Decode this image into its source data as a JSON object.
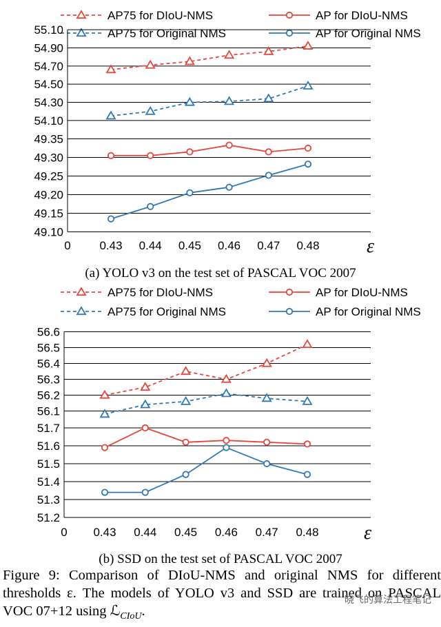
{
  "colors": {
    "red": "#e5463b",
    "blue": "#2f78b7",
    "grid": "#000000"
  },
  "chart_data": [
    {
      "type": "line",
      "subtitle": "(a) YOLO v3 on the test set of PASCAL VOC 2007",
      "xlabel": "ε",
      "categories": [
        "0.43",
        "0.44",
        "0.45",
        "0.46",
        "0.47",
        "0.48"
      ],
      "origin_label": "0",
      "broken_axis": true,
      "upper_yticks": [
        "55.10",
        "54.90",
        "54.70",
        "54.50",
        "54.30",
        "54.10"
      ],
      "lower_yticks": [
        "49.35",
        "49.30",
        "49.25",
        "49.20",
        "49.15",
        "49.10"
      ],
      "upper_ylim": [
        54.1,
        55.1
      ],
      "lower_ylim": [
        49.1,
        49.35
      ],
      "legend": [
        {
          "label": "AP75 for DIoU-NMS",
          "color": "red",
          "dash": true,
          "marker": "triangle"
        },
        {
          "label": "AP for DIoU-NMS",
          "color": "red",
          "dash": false,
          "marker": "circle"
        },
        {
          "label": "AP75 for Original NMS",
          "color": "blue",
          "dash": true,
          "marker": "triangle"
        },
        {
          "label": "AP for Original NMS",
          "color": "blue",
          "dash": false,
          "marker": "circle"
        }
      ],
      "series": [
        {
          "name": "AP75 for DIoU-NMS",
          "panel": "upper",
          "values": [
            54.66,
            54.71,
            54.75,
            54.82,
            54.86,
            54.92
          ]
        },
        {
          "name": "AP75 for Original NMS",
          "panel": "upper",
          "values": [
            54.15,
            54.2,
            54.3,
            54.31,
            54.34,
            54.48
          ]
        },
        {
          "name": "AP for DIoU-NMS",
          "panel": "lower",
          "values": [
            49.305,
            49.305,
            49.315,
            49.333,
            49.315,
            49.325
          ]
        },
        {
          "name": "AP for Original NMS",
          "panel": "lower",
          "values": [
            49.135,
            49.168,
            49.205,
            49.22,
            49.252,
            49.282
          ]
        }
      ]
    },
    {
      "type": "line",
      "subtitle": "(b) SSD on the test set of PASCAL VOC 2007",
      "xlabel": "ε",
      "categories": [
        "0.43",
        "0.44",
        "0.45",
        "0.46",
        "0.47",
        "0.48"
      ],
      "origin_label": "0",
      "broken_axis": true,
      "upper_yticks": [
        "56.6",
        "56.5",
        "56.4",
        "56.3",
        "56.2",
        "56.1"
      ],
      "lower_yticks": [
        "51.7",
        "51.6",
        "51.5",
        "51.4",
        "51.3",
        "51.2"
      ],
      "upper_ylim": [
        56.1,
        56.6
      ],
      "lower_ylim": [
        51.2,
        51.7
      ],
      "legend": [
        {
          "label": "AP75 for DIoU-NMS",
          "color": "red",
          "dash": true,
          "marker": "triangle"
        },
        {
          "label": "AP for DIoU-NMS",
          "color": "red",
          "dash": false,
          "marker": "circle"
        },
        {
          "label": "AP75 for Original NMS",
          "color": "blue",
          "dash": true,
          "marker": "triangle"
        },
        {
          "label": "AP for Original NMS",
          "color": "blue",
          "dash": false,
          "marker": "circle"
        }
      ],
      "series": [
        {
          "name": "AP75 for DIoU-NMS",
          "panel": "upper",
          "values": [
            56.2,
            56.25,
            56.35,
            56.3,
            56.4,
            56.52
          ]
        },
        {
          "name": "AP75 for Original NMS",
          "panel": "upper",
          "values": [
            56.08,
            56.14,
            56.16,
            56.21,
            56.18,
            56.16
          ]
        },
        {
          "name": "AP for DIoU-NMS",
          "panel": "lower",
          "values": [
            51.59,
            51.7,
            51.62,
            51.63,
            51.62,
            51.61
          ]
        },
        {
          "name": "AP for Original NMS",
          "panel": "lower",
          "values": [
            51.34,
            51.34,
            51.44,
            51.59,
            51.5,
            51.44
          ]
        }
      ]
    }
  ],
  "caption": {
    "label": "Figure 9:",
    "text": "Comparison of DIoU-NMS and original NMS for different thresholds ε. The models of YOLO v3 and SSD are trained on PASCAL VOC 07+12 using ℒ",
    "subscript": "CIoU",
    "end": ".",
    "watermark": "晓飞的算法工程笔记"
  }
}
